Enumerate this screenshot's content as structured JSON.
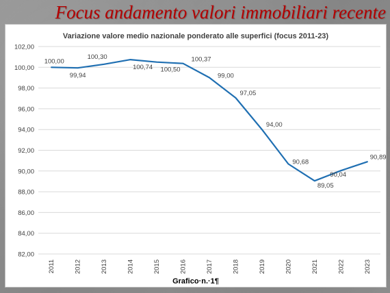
{
  "slide": {
    "title": "Focus andamento valori immobiliari recente"
  },
  "chart_data": {
    "type": "line",
    "title": "Variazione valore medio nazionale ponderato alle superfici (focus 2011-23)",
    "caption": "Grafico·n.·1¶",
    "x": [
      "2011",
      "2012",
      "2013",
      "2014",
      "2015",
      "2016",
      "2017",
      "2018",
      "2019",
      "2020",
      "2021",
      "2022",
      "2023"
    ],
    "series": [
      {
        "values": [
          100.0,
          99.94,
          100.3,
          100.74,
          100.5,
          100.37,
          99.0,
          97.05,
          94.0,
          90.68,
          89.05,
          90.04,
          90.89
        ],
        "labels": [
          "100,00",
          "99,94",
          "100,30",
          "100,74",
          "100,50",
          "100,37",
          "99,00",
          "97,05",
          "94,00",
          "90,68",
          "89,05",
          "90,04",
          "90,89"
        ],
        "color": "#1f6fb2"
      }
    ],
    "ylim": [
      82,
      102
    ],
    "yticks": [
      "82,00",
      "84,00",
      "86,00",
      "88,00",
      "90,00",
      "92,00",
      "94,00",
      "96,00",
      "98,00",
      "100,00",
      "102,00"
    ],
    "grid": true,
    "legend": false
  },
  "colors": {
    "title": "#b40000",
    "line": "#1f6fb2",
    "grid": "#d9d9d9"
  }
}
